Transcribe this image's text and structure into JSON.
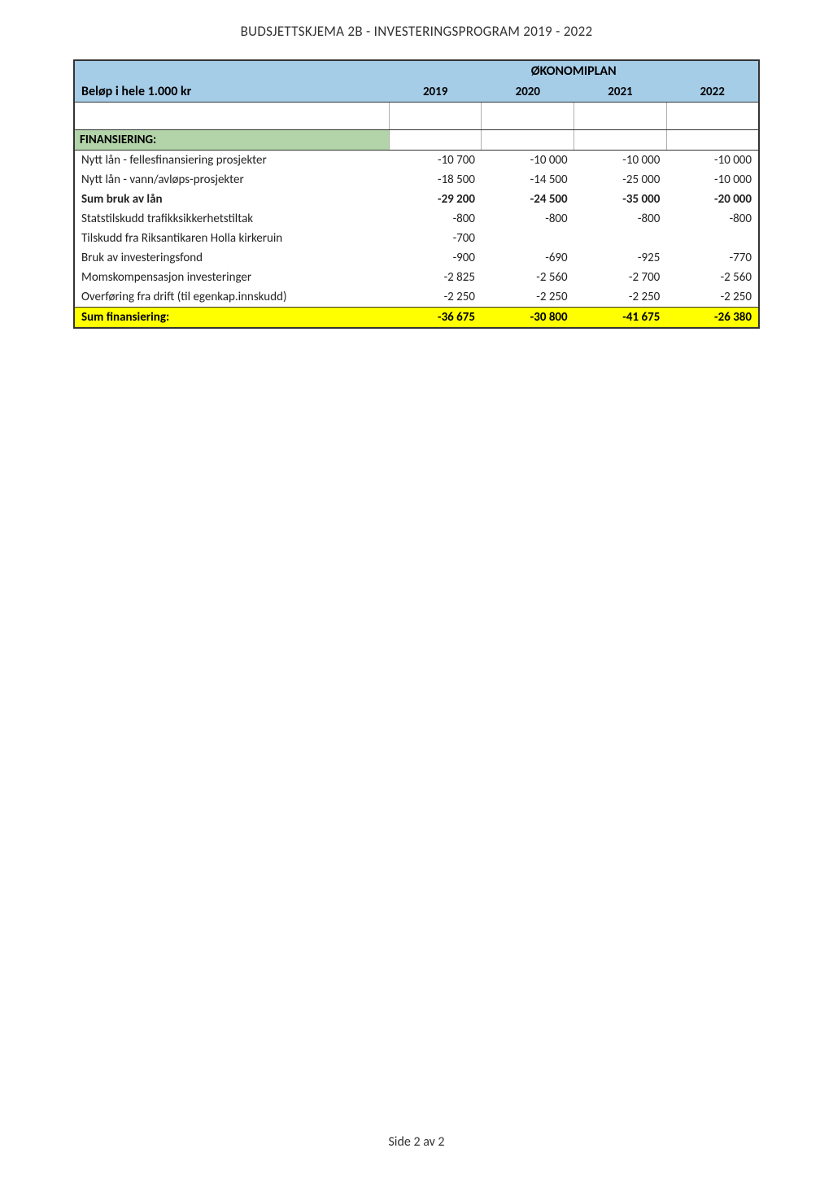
{
  "page": {
    "title": "BUDSJETTSKJEMA 2B - INVESTERINGSPROGRAM 2019 - 2022",
    "footer": "Side 2 av 2"
  },
  "table": {
    "okonomiplan_label": "ØKONOMIPLAN",
    "row_label": "Beløp i hele 1.000 kr",
    "years": [
      "2019",
      "2020",
      "2021",
      "2022"
    ],
    "section_label": "FINANSIERING:",
    "rows": [
      {
        "label": "Nytt lån - fellesfinansiering prosjekter",
        "vals": [
          "-10 700",
          "-10 000",
          "-10 000",
          "-10 000"
        ],
        "bold": false
      },
      {
        "label": "Nytt lån - vann/avløps-prosjekter",
        "vals": [
          "-18 500",
          "-14 500",
          "-25 000",
          "-10 000"
        ],
        "bold": false
      },
      {
        "label": "Sum bruk av lån",
        "vals": [
          "-29 200",
          "-24 500",
          "-35 000",
          "-20 000"
        ],
        "bold": true
      },
      {
        "label": "Statstilskudd trafikksikkerhetstiltak",
        "vals": [
          "-800",
          "-800",
          "-800",
          "-800"
        ],
        "bold": false
      },
      {
        "label": "Tilskudd fra Riksantikaren Holla kirkeruin",
        "vals": [
          "-700",
          "",
          "",
          ""
        ],
        "bold": false
      },
      {
        "label": "Bruk av investeringsfond",
        "vals": [
          "-900",
          "-690",
          "-925",
          "-770"
        ],
        "bold": false
      },
      {
        "label": "Momskompensasjon investeringer",
        "vals": [
          "-2 825",
          "-2 560",
          "-2 700",
          "-2 560"
        ],
        "bold": false
      },
      {
        "label": "Overføring fra drift (til egenkap.innskudd)",
        "vals": [
          "-2 250",
          "-2 250",
          "-2 250",
          "-2 250"
        ],
        "bold": false
      }
    ],
    "sum_row": {
      "label": "Sum finansiering:",
      "vals": [
        "-36 675",
        "-30 800",
        "-41 675",
        "-26 380"
      ]
    }
  },
  "style": {
    "header_bg": "#a6cde8",
    "section_bg": "#b3d4a8",
    "sum_bg": "#ffff00",
    "border_color": "#333333",
    "font_family": "Calibri, Arial, sans-serif",
    "title_fontsize": 17,
    "body_fontsize": 15
  }
}
